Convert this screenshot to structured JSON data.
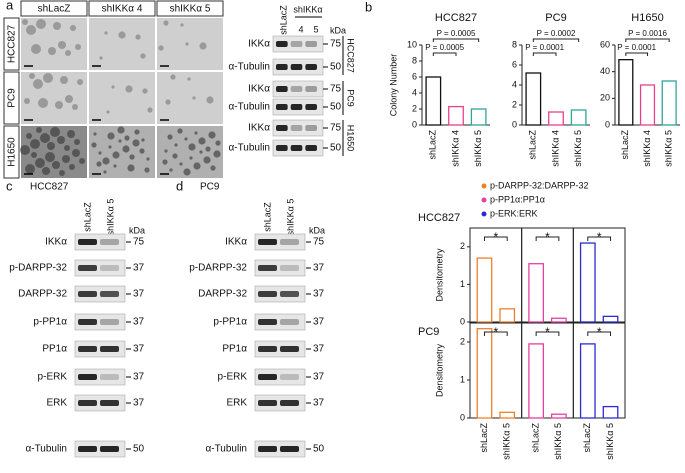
{
  "panel_labels": [
    "a",
    "b",
    "c",
    "d"
  ],
  "micrographs": {
    "columns": [
      "shLacZ",
      "shIKKα 4",
      "shIKKα 5"
    ],
    "rows": [
      "HCC827",
      "PC9",
      "H1650"
    ]
  },
  "blot_a": {
    "lane": "shLacZ",
    "group": "shIKKα",
    "sublanes": [
      "4",
      "5"
    ],
    "unit": "kDa",
    "cell_lines": [
      {
        "name": "HCC827",
        "bands": [
          {
            "label": "IKKα",
            "kda": "75"
          },
          {
            "label": "α-Tubulin",
            "kda": "50"
          }
        ]
      },
      {
        "name": "PC9",
        "bands": [
          {
            "label": "IKKα",
            "kda": "75"
          },
          {
            "label": "α-Tubulin",
            "kda": "50"
          }
        ]
      },
      {
        "name": "H1650",
        "bands": [
          {
            "label": "IKKα",
            "kda": "75"
          },
          {
            "label": "α-Tubulin",
            "kda": "50"
          }
        ]
      }
    ]
  },
  "blot_c": {
    "title": "HCC827",
    "lanes": [
      "shLacZ",
      "shIKKα 5"
    ],
    "unit": "kDa",
    "bands": [
      {
        "label": "IKKα",
        "kda": "75"
      },
      {
        "label": "p-DARPP-32",
        "kda": "37"
      },
      {
        "label": "DARPP-32",
        "kda": "37"
      },
      {
        "label": "p-PP1α",
        "kda": "37"
      },
      {
        "label": "PP1α",
        "kda": "37"
      },
      {
        "label": "p-ERK",
        "kda": "37"
      },
      {
        "label": "ERK",
        "kda": "37"
      },
      {
        "label": "α-Tubulin",
        "kda": "50"
      }
    ]
  },
  "blot_d": {
    "title": "PC9",
    "lanes": [
      "shLacZ",
      "shIKKα 5"
    ],
    "unit": "kDa",
    "bands": [
      {
        "label": "IKKα",
        "kda": "75"
      },
      {
        "label": "p-DARPP-32",
        "kda": "37"
      },
      {
        "label": "DARPP-32",
        "kda": "37"
      },
      {
        "label": "p-PP1α",
        "kda": "37"
      },
      {
        "label": "PP1α",
        "kda": "37"
      },
      {
        "label": "p-ERK",
        "kda": "37"
      },
      {
        "label": "ERK",
        "kda": "37"
      },
      {
        "label": "α-Tubulin",
        "kda": "50"
      }
    ]
  },
  "densitometry_legend": [
    {
      "name": "p-DARPP-32:DARPP-32",
      "color": "#f07f2a"
    },
    {
      "name": "p-PP1α:PP1α",
      "color": "#e83ea0"
    },
    {
      "name": "p-ERK:ERK",
      "color": "#2b2bd6"
    }
  ],
  "chart_data": [
    {
      "type": "bar",
      "title": "HCC827",
      "ylabel": "Colony Number",
      "categories": [
        "shLacZ",
        "shIKKα 4",
        "shIKKα 5"
      ],
      "values": [
        6,
        2.3,
        2
      ],
      "colors": [
        "#111111",
        "#e8418a",
        "#2fa59c"
      ],
      "ylim": [
        0,
        10
      ],
      "yticks": [
        0,
        2,
        4,
        6,
        8,
        10
      ],
      "annotations": [
        "P = 0.0005",
        "P = 0.0005"
      ]
    },
    {
      "type": "bar",
      "title": "PC9",
      "categories": [
        "shLacZ",
        "shIKKα 4",
        "shIKKα 5"
      ],
      "values": [
        5.2,
        1.3,
        1.5
      ],
      "colors": [
        "#111111",
        "#e8418a",
        "#2fa59c"
      ],
      "ylim": [
        0,
        8
      ],
      "yticks": [
        0,
        2,
        4,
        6,
        8
      ],
      "annotations": [
        "P = 0.0001",
        "P = 0.0002"
      ]
    },
    {
      "type": "bar",
      "title": "H1650",
      "categories": [
        "shLacZ",
        "shIKKα 4",
        "shIKKα 5"
      ],
      "values": [
        49,
        30,
        33
      ],
      "colors": [
        "#111111",
        "#e8418a",
        "#2fa59c"
      ],
      "ylim": [
        0,
        60
      ],
      "yticks": [
        0,
        20,
        40,
        60
      ],
      "annotations": [
        "P = 0.0001",
        "P = 0.0016"
      ]
    },
    {
      "type": "grouped",
      "title": "HCC827",
      "ylabel": "Densitometry",
      "series": [
        {
          "color": "#f07f2a",
          "values": [
            1.7,
            0.35
          ]
        },
        {
          "color": "#e83ea0",
          "values": [
            1.55,
            0.1
          ]
        },
        {
          "color": "#2b2bd6",
          "values": [
            2.1,
            0.15
          ]
        }
      ],
      "ylim": [
        0,
        2.5
      ],
      "yticks": [
        0,
        1,
        2
      ],
      "annotations": [
        "*",
        "*",
        "*"
      ]
    },
    {
      "type": "grouped",
      "title": "PC9",
      "ylabel": "Densitometry",
      "categories": [
        "shLacZ",
        "shIKKα 5"
      ],
      "series": [
        {
          "color": "#f07f2a",
          "values": [
            2.35,
            0.15
          ]
        },
        {
          "color": "#e83ea0",
          "values": [
            1.95,
            0.1
          ]
        },
        {
          "color": "#2b2bd6",
          "values": [
            1.95,
            0.3
          ]
        }
      ],
      "ylim": [
        0,
        2.5
      ],
      "yticks": [
        0,
        1,
        2
      ],
      "annotations": [
        "*",
        "*",
        "*"
      ]
    }
  ]
}
